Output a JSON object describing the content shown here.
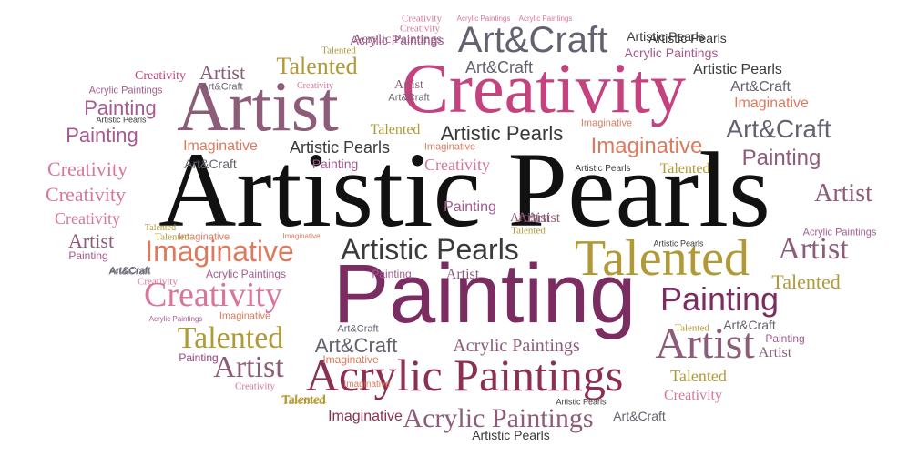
{
  "palette": {
    "black": "#111111",
    "plum": "#7b2d62",
    "magenta": "#c4437e",
    "pink": "#d9759b",
    "mauve": "#8d5c78",
    "grey": "#666170",
    "dark_grey": "#3a3a3a",
    "olive": "#b19a36",
    "coral": "#dc7a5e",
    "wine": "#8c2f52",
    "lilac": "#a35b90"
  },
  "words": [
    {
      "text": "Artistic Pearls",
      "color": "black",
      "font": "serif"
    },
    {
      "text": "Painting",
      "color": "plum",
      "font": "sans"
    },
    {
      "text": "Creativity",
      "color": "magenta",
      "font": "serif"
    },
    {
      "text": "Artist",
      "color": "mauve",
      "font": "serif"
    },
    {
      "text": "Acrylic Paintings",
      "color": "wine",
      "font": "serif"
    },
    {
      "text": "Talented",
      "color": "olive",
      "font": "serif"
    },
    {
      "text": "Art&Craft",
      "color": "grey",
      "font": "sans"
    },
    {
      "text": "Imaginative",
      "color": "coral",
      "font": "sans"
    },
    {
      "text": "Artistic Pearls",
      "color": "dark_grey",
      "font": "sans"
    },
    {
      "text": "Painting",
      "color": "plum",
      "font": "sans"
    },
    {
      "text": "Artist",
      "color": "mauve",
      "font": "serif"
    },
    {
      "text": "Creativity",
      "color": "pink",
      "font": "serif"
    },
    {
      "text": "Talented",
      "color": "olive",
      "font": "serif"
    },
    {
      "text": "Acrylic Paintings",
      "color": "mauve",
      "font": "serif"
    },
    {
      "text": "Art&Craft",
      "color": "grey",
      "font": "sans"
    },
    {
      "text": "Imaginative",
      "color": "coral",
      "font": "sans"
    },
    {
      "text": "Art&Craft",
      "color": "grey",
      "font": "sans"
    },
    {
      "text": "Artist",
      "color": "mauve",
      "font": "serif"
    },
    {
      "text": "Artist",
      "color": "mauve",
      "font": "serif"
    },
    {
      "text": "Talented",
      "color": "olive",
      "font": "serif"
    },
    {
      "text": "Painting",
      "color": "lilac",
      "font": "sans"
    },
    {
      "text": "Painting",
      "color": "lilac",
      "font": "sans"
    },
    {
      "text": "Painting",
      "color": "mauve",
      "font": "sans"
    },
    {
      "text": "Creativity",
      "color": "pink",
      "font": "serif"
    },
    {
      "text": "Creativity",
      "color": "pink",
      "font": "serif"
    },
    {
      "text": "Artist",
      "color": "mauve",
      "font": "serif"
    },
    {
      "text": "Artistic Pearls",
      "color": "dark_grey",
      "font": "sans"
    },
    {
      "text": "Artistic Pearls",
      "color": "dark_grey",
      "font": "sans"
    },
    {
      "text": "Artistic Pearls",
      "color": "dark_grey",
      "font": "sans"
    },
    {
      "text": "Talented",
      "color": "olive",
      "font": "serif"
    },
    {
      "text": "Art&Craft",
      "color": "grey",
      "font": "sans"
    },
    {
      "text": "Acrylic Paintings",
      "color": "mauve",
      "font": "serif"
    },
    {
      "text": "Acrylic Paintings",
      "color": "mauve",
      "font": "serif"
    },
    {
      "text": "Imaginative",
      "color": "coral",
      "font": "sans"
    },
    {
      "text": "Imaginative",
      "color": "coral",
      "font": "sans"
    },
    {
      "text": "Imaginative",
      "color": "wine",
      "font": "sans"
    },
    {
      "text": "Creativity",
      "color": "pink",
      "font": "serif"
    },
    {
      "text": "Creativity",
      "color": "pink",
      "font": "serif"
    },
    {
      "text": "Creativity",
      "color": "pink",
      "font": "serif"
    },
    {
      "text": "Creativity",
      "color": "magenta",
      "font": "serif"
    },
    {
      "text": "Talented",
      "color": "olive",
      "font": "serif"
    },
    {
      "text": "Talented",
      "color": "olive",
      "font": "serif"
    },
    {
      "text": "Talented",
      "color": "olive",
      "font": "serif"
    },
    {
      "text": "Artist",
      "color": "mauve",
      "font": "serif"
    },
    {
      "text": "Artist",
      "color": "mauve",
      "font": "serif"
    },
    {
      "text": "Artist",
      "color": "mauve",
      "font": "serif"
    },
    {
      "text": "Art&Craft",
      "color": "grey",
      "font": "sans"
    },
    {
      "text": "Art&Craft",
      "color": "grey",
      "font": "sans"
    },
    {
      "text": "Art&Craft",
      "color": "grey",
      "font": "sans"
    },
    {
      "text": "Art&Craft",
      "color": "grey",
      "font": "sans"
    },
    {
      "text": "Art&Craft",
      "color": "grey",
      "font": "sans"
    },
    {
      "text": "Painting",
      "color": "lilac",
      "font": "sans"
    },
    {
      "text": "Painting",
      "color": "lilac",
      "font": "sans"
    },
    {
      "text": "Painting",
      "color": "lilac",
      "font": "sans"
    },
    {
      "text": "Painting",
      "color": "lilac",
      "font": "sans"
    },
    {
      "text": "Painting",
      "color": "lilac",
      "font": "sans"
    },
    {
      "text": "Acrylic Paintings",
      "color": "lilac",
      "font": "sans"
    },
    {
      "text": "Acrylic Paintings",
      "color": "lilac",
      "font": "sans"
    },
    {
      "text": "Acrylic Paintings",
      "color": "lilac",
      "font": "sans"
    },
    {
      "text": "Acrylic Paintings",
      "color": "lilac",
      "font": "sans"
    },
    {
      "text": "Acrylic Paintings",
      "color": "pink",
      "font": "sans"
    },
    {
      "text": "Acrylic Paintings",
      "color": "pink",
      "font": "sans"
    },
    {
      "text": "Artistic Pearls",
      "color": "dark_grey",
      "font": "sans"
    },
    {
      "text": "Artistic Pearls",
      "color": "dark_grey",
      "font": "sans"
    },
    {
      "text": "Artistic Pearls",
      "color": "dark_grey",
      "font": "sans"
    },
    {
      "text": "Artistic Pearls",
      "color": "dark_grey",
      "font": "sans"
    },
    {
      "text": "Artistic Pearls",
      "color": "dark_grey",
      "font": "sans"
    },
    {
      "text": "Imaginative",
      "color": "coral",
      "font": "sans"
    },
    {
      "text": "Imaginative",
      "color": "coral",
      "font": "sans"
    },
    {
      "text": "Imaginative",
      "color": "coral",
      "font": "sans"
    },
    {
      "text": "Imaginative",
      "color": "coral",
      "font": "sans"
    },
    {
      "text": "Imaginative",
      "color": "coral",
      "font": "sans"
    },
    {
      "text": "Creativity",
      "color": "pink",
      "font": "serif"
    },
    {
      "text": "Creativity",
      "color": "pink",
      "font": "serif"
    },
    {
      "text": "Creativity",
      "color": "pink",
      "font": "serif"
    },
    {
      "text": "Talented",
      "color": "olive",
      "font": "serif"
    },
    {
      "text": "Talented",
      "color": "olive",
      "font": "serif"
    },
    {
      "text": "Talented",
      "color": "olive",
      "font": "serif"
    },
    {
      "text": "Artist",
      "color": "mauve",
      "font": "serif"
    },
    {
      "text": "Artist",
      "color": "mauve",
      "font": "serif"
    },
    {
      "text": "Artist",
      "color": "mauve",
      "font": "serif"
    },
    {
      "text": "Artist",
      "color": "mauve",
      "font": "serif"
    },
    {
      "text": "Art&Craft",
      "color": "grey",
      "font": "sans"
    },
    {
      "text": "Art&Craft",
      "color": "grey",
      "font": "sans"
    },
    {
      "text": "Art&Craft",
      "color": "grey",
      "font": "sans"
    },
    {
      "text": "Painting",
      "color": "lilac",
      "font": "sans"
    },
    {
      "text": "Painting",
      "color": "lilac",
      "font": "sans"
    },
    {
      "text": "Acrylic Paintings",
      "color": "lilac",
      "font": "sans"
    },
    {
      "text": "Acrylic Paintings",
      "color": "lilac",
      "font": "sans"
    },
    {
      "text": "Imaginative",
      "color": "coral",
      "font": "sans"
    },
    {
      "text": "Imaginative",
      "color": "coral",
      "font": "sans"
    },
    {
      "text": "Talented",
      "color": "olive",
      "font": "serif"
    },
    {
      "text": "Talented",
      "color": "olive",
      "font": "serif"
    },
    {
      "text": "Talented",
      "color": "olive",
      "font": "serif"
    },
    {
      "text": "Talented",
      "color": "olive",
      "font": "serif"
    },
    {
      "text": "Creativity",
      "color": "pink",
      "font": "serif"
    },
    {
      "text": "Creativity",
      "color": "pink",
      "font": "serif"
    },
    {
      "text": "Artistic Pearls",
      "color": "dark_grey",
      "font": "sans"
    },
    {
      "text": "Artistic Pearls",
      "color": "dark_grey",
      "font": "sans"
    },
    {
      "text": "Art&Craft",
      "color": "grey",
      "font": "sans"
    },
    {
      "text": "Artist",
      "color": "mauve",
      "font": "serif"
    }
  ]
}
